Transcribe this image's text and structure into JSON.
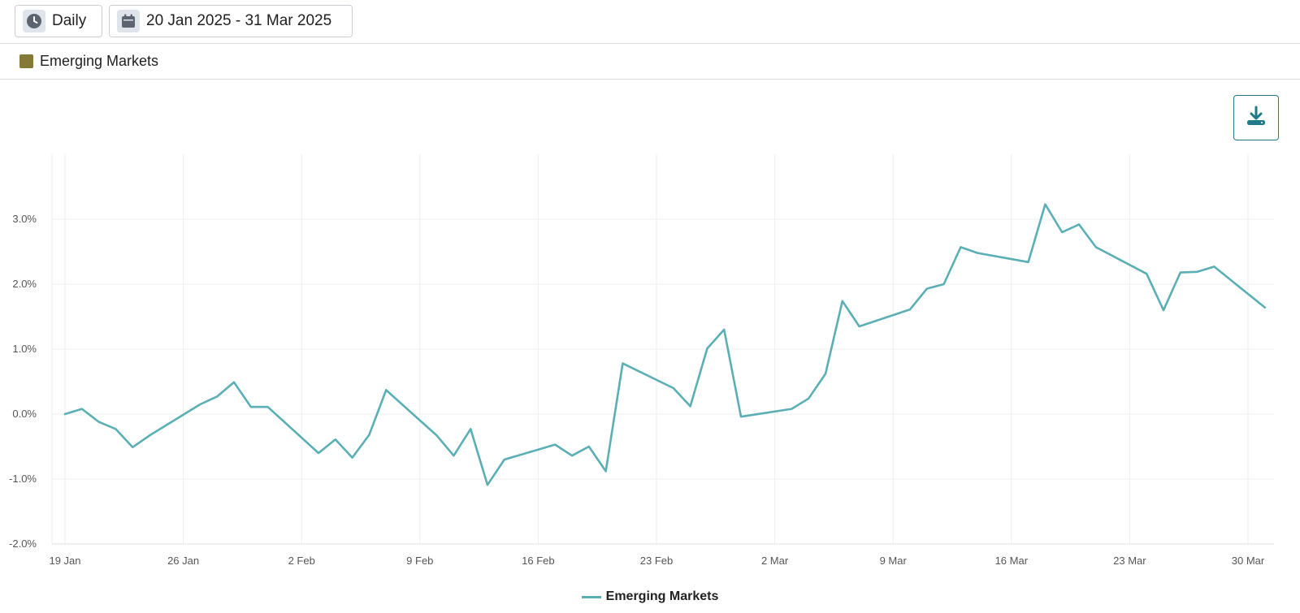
{
  "toolbar": {
    "interval_label": "Daily",
    "interval_icon": "clock-icon",
    "range_label": "20 Jan 2025 - 31 Mar 2025",
    "range_icon": "calendar-icon"
  },
  "legend": {
    "series_label": "Emerging Markets",
    "swatch_color": "#857a35"
  },
  "download": {
    "icon": "download-icon",
    "color": "#1d7a86"
  },
  "chart_data": {
    "type": "line",
    "title": "",
    "xlabel": "",
    "ylabel": "",
    "ylim": [
      -2.0,
      4.0
    ],
    "grid": true,
    "legend_placement": "bottom-center",
    "xlim": [
      "2025-01-19",
      "2025-03-31"
    ],
    "y_ticks": [
      "-2.0%",
      "-1.0%",
      "0.0%",
      "1.0%",
      "2.0%",
      "3.0%"
    ],
    "x_ticks": [
      {
        "date": "2025-01-19",
        "label": "19 Jan"
      },
      {
        "date": "2025-01-26",
        "label": "26 Jan"
      },
      {
        "date": "2025-02-02",
        "label": "2 Feb"
      },
      {
        "date": "2025-02-09",
        "label": "9 Feb"
      },
      {
        "date": "2025-02-16",
        "label": "16 Feb"
      },
      {
        "date": "2025-02-23",
        "label": "23 Feb"
      },
      {
        "date": "2025-03-02",
        "label": "2 Mar"
      },
      {
        "date": "2025-03-09",
        "label": "9 Mar"
      },
      {
        "date": "2025-03-16",
        "label": "16 Mar"
      },
      {
        "date": "2025-03-23",
        "label": "23 Mar"
      },
      {
        "date": "2025-03-30",
        "label": "30 Mar"
      }
    ],
    "series": [
      {
        "name": "Emerging Markets",
        "color": "#5aafb5",
        "x": [
          "2025-01-19",
          "2025-01-20",
          "2025-01-21",
          "2025-01-22",
          "2025-01-23",
          "2025-01-24",
          "2025-01-27",
          "2025-01-28",
          "2025-01-29",
          "2025-01-30",
          "2025-01-31",
          "2025-02-03",
          "2025-02-04",
          "2025-02-05",
          "2025-02-06",
          "2025-02-07",
          "2025-02-10",
          "2025-02-11",
          "2025-02-12",
          "2025-02-13",
          "2025-02-14",
          "2025-02-17",
          "2025-02-18",
          "2025-02-19",
          "2025-02-20",
          "2025-02-21",
          "2025-02-24",
          "2025-02-25",
          "2025-02-26",
          "2025-02-27",
          "2025-02-28",
          "2025-03-03",
          "2025-03-04",
          "2025-03-05",
          "2025-03-06",
          "2025-03-07",
          "2025-03-10",
          "2025-03-11",
          "2025-03-12",
          "2025-03-13",
          "2025-03-14",
          "2025-03-17",
          "2025-03-18",
          "2025-03-19",
          "2025-03-20",
          "2025-03-21",
          "2025-03-24",
          "2025-03-25",
          "2025-03-26",
          "2025-03-27",
          "2025-03-28",
          "2025-03-31"
        ],
        "values": [
          0.0,
          0.08,
          -0.12,
          -0.23,
          -0.51,
          -0.33,
          0.15,
          0.27,
          0.49,
          0.11,
          0.11,
          -0.6,
          -0.39,
          -0.67,
          -0.32,
          0.37,
          -0.33,
          -0.64,
          -0.23,
          -1.09,
          -0.7,
          -0.47,
          -0.64,
          -0.5,
          -0.88,
          0.78,
          0.4,
          0.12,
          1.01,
          1.3,
          -0.04,
          0.08,
          0.24,
          0.62,
          1.74,
          1.35,
          1.61,
          1.93,
          2.0,
          2.57,
          2.48,
          2.34,
          3.23,
          2.8,
          2.92,
          2.57,
          2.16,
          1.6,
          2.18,
          2.19,
          2.27,
          1.64
        ]
      }
    ]
  }
}
